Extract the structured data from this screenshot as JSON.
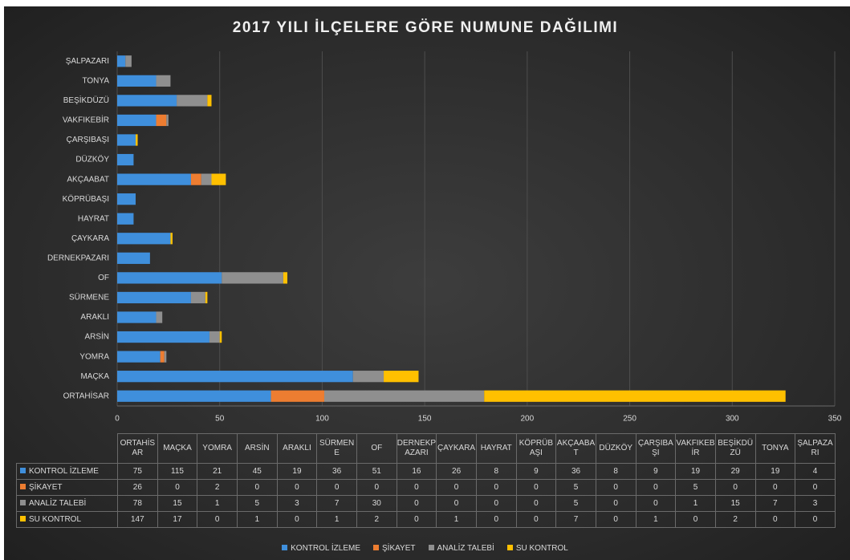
{
  "chart_data": {
    "type": "bar",
    "orientation": "horizontal",
    "stacked": true,
    "title": "2017 YILI İLÇELERE GÖRE NUMUNE DAĞILIMI",
    "categories": [
      "ORTAHİSAR",
      "MAÇKA",
      "YOMRA",
      "ARSİN",
      "ARAKLI",
      "SÜRMENE",
      "OF",
      "DERNEKPAZARI",
      "ÇAYKARA",
      "HAYRAT",
      "KÖPRÜBAŞI",
      "AKÇAABAT",
      "DÜZKÖY",
      "ÇARŞIBAŞI",
      "VAKFIKEBİR",
      "BEŞİKDÜZÜ",
      "TONYA",
      "ŞALPAZARI"
    ],
    "series": [
      {
        "name": "KONTROL İZLEME",
        "color": "#3f8fdc",
        "values": [
          75,
          115,
          21,
          45,
          19,
          36,
          51,
          16,
          26,
          8,
          9,
          36,
          8,
          9,
          19,
          29,
          19,
          4
        ]
      },
      {
        "name": "ŞİKAYET",
        "color": "#ed7d31",
        "values": [
          26,
          0,
          2,
          0,
          0,
          0,
          0,
          0,
          0,
          0,
          0,
          5,
          0,
          0,
          5,
          0,
          0,
          0
        ]
      },
      {
        "name": "ANALİZ TALEBİ",
        "color": "#8f8f8f",
        "values": [
          78,
          15,
          1,
          5,
          3,
          7,
          30,
          0,
          0,
          0,
          0,
          5,
          0,
          0,
          1,
          15,
          7,
          3
        ]
      },
      {
        "name": "SU KONTROL",
        "color": "#ffc000",
        "values": [
          147,
          17,
          0,
          1,
          0,
          1,
          2,
          0,
          1,
          0,
          0,
          7,
          0,
          1,
          0,
          2,
          0,
          0
        ]
      }
    ],
    "xlim": [
      0,
      350
    ],
    "xticks": [
      0,
      50,
      100,
      150,
      200,
      250,
      300,
      350
    ],
    "grid": true,
    "data_table": true,
    "legend": "bottom"
  }
}
